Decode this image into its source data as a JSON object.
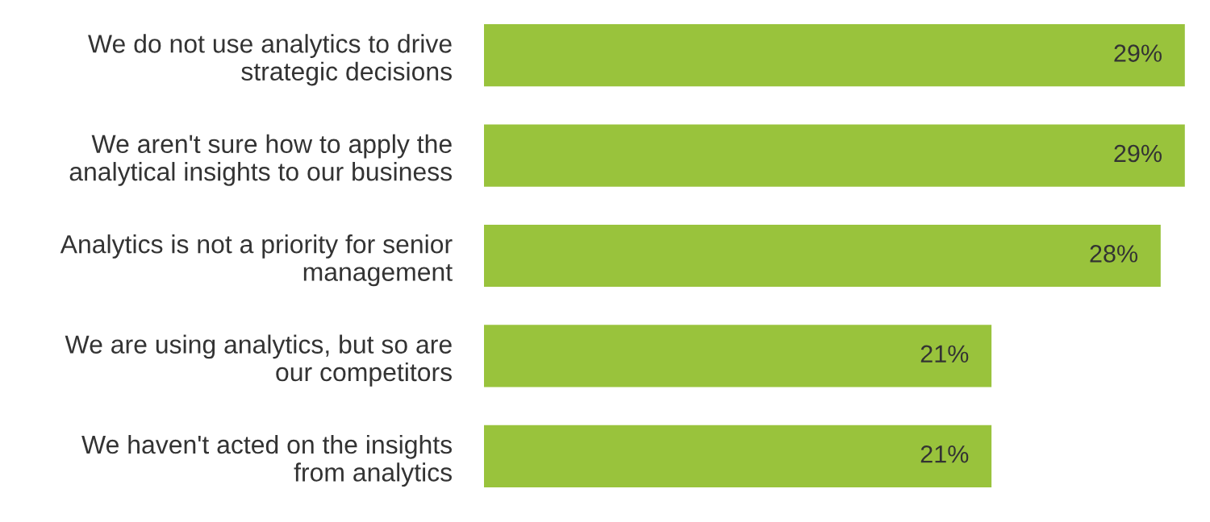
{
  "chart_data": {
    "type": "bar",
    "orientation": "horizontal",
    "categories": [
      "We do not use analytics to drive\nstrategic decisions",
      "We aren't sure how to apply the\nanalytical insights to our business",
      "Analytics is not a priority for senior\nmanagement",
      "We are using analytics, but so are\nour competitors",
      "We haven't acted on the insights\nfrom analytics"
    ],
    "values": [
      29,
      29,
      28,
      21,
      21
    ],
    "value_labels": [
      "29%",
      "29%",
      "28%",
      "21%",
      "21%"
    ],
    "color": "#99c33c"
  }
}
